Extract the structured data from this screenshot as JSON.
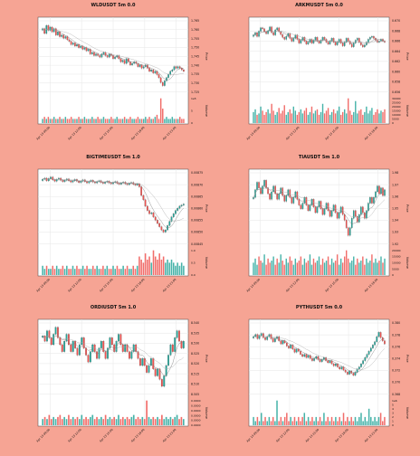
{
  "page": {
    "background": "#f6a494"
  },
  "colors": {
    "up": "#26a69a",
    "down": "#ef5350",
    "ma_fast": "#777777",
    "ma_slow": "#aaaaaa",
    "text": "#111111",
    "grid": "#e6e6e6"
  },
  "chart_data": [
    {
      "type": "candlestick",
      "title": "WLDUSDT 5m 0.0",
      "ylabel": "Price",
      "vlabel": "Volume",
      "y_ticks": [
        "1.765",
        "1.760",
        "1.755",
        "1.750",
        "1.745",
        "1.740",
        "1.735",
        "1.730",
        "1.725"
      ],
      "vol_ticks": [
        "1e5",
        "5",
        "0"
      ],
      "x_labels": [
        "Apr 13 09:00",
        "Apr 13 12:00",
        "Apr 13 15:00",
        "Apr 13 18:00",
        "Apr 13 21:00"
      ],
      "ylim": [
        1.722,
        1.767
      ],
      "close": [
        1.762,
        1.759,
        1.764,
        1.761,
        1.763,
        1.76,
        1.762,
        1.758,
        1.76,
        1.757,
        1.758,
        1.756,
        1.757,
        1.755,
        1.754,
        1.752,
        1.753,
        1.751,
        1.752,
        1.75,
        1.751,
        1.749,
        1.75,
        1.748,
        1.749,
        1.746,
        1.747,
        1.745,
        1.746,
        1.745,
        1.744,
        1.746,
        1.747,
        1.745,
        1.744,
        1.746,
        1.745,
        1.743,
        1.744,
        1.745,
        1.743,
        1.741,
        1.742,
        1.74,
        1.743,
        1.741,
        1.739,
        1.74,
        1.741,
        1.74,
        1.738,
        1.739,
        1.737,
        1.738,
        1.739,
        1.737,
        1.735,
        1.736,
        1.734,
        1.735,
        1.733,
        1.731,
        1.728,
        1.726,
        1.729,
        1.731,
        1.733,
        1.735,
        1.736,
        1.738,
        1.737,
        1.738,
        1.737,
        1.736,
        1.735
      ],
      "volume": [
        2,
        3,
        2,
        3,
        2,
        2,
        3,
        2,
        2,
        3,
        2,
        2,
        3,
        2,
        2,
        3,
        2,
        2,
        2,
        3,
        2,
        2,
        3,
        2,
        2,
        2,
        3,
        2,
        2,
        3,
        2,
        2,
        3,
        2,
        2,
        2,
        3,
        2,
        2,
        3,
        2,
        2,
        2,
        3,
        2,
        2,
        3,
        2,
        2,
        2,
        3,
        2,
        2,
        2,
        3,
        2,
        3,
        2,
        2,
        3,
        4,
        2,
        12,
        7,
        2,
        3,
        2,
        2,
        3,
        2,
        2,
        2,
        3,
        2,
        2
      ]
    },
    {
      "type": "candlestick",
      "title": "ARKMUSDT 5m 0.0",
      "ylabel": "Price",
      "vlabel": "Volume",
      "y_ticks": [
        "0.670",
        "0.668",
        "0.666",
        "0.664",
        "0.662",
        "0.660",
        "0.658",
        "0.656"
      ],
      "vol_ticks": [
        "30000",
        "25000",
        "20000",
        "15000",
        "10000",
        "5000",
        "0"
      ],
      "x_labels": [
        "Apr 13 09:00",
        "Apr 13 12:00",
        "Apr 13 15:00",
        "Apr 13 18:00"
      ],
      "ylim": [
        0.6555,
        0.6705
      ],
      "close": [
        0.6675,
        0.668,
        0.6672,
        0.6683,
        0.669,
        0.6688,
        0.6682,
        0.6678,
        0.6684,
        0.6692,
        0.668,
        0.6675,
        0.6686,
        0.669,
        0.6682,
        0.6676,
        0.667,
        0.6666,
        0.6672,
        0.6678,
        0.6668,
        0.6662,
        0.6668,
        0.6675,
        0.6666,
        0.6658,
        0.6664,
        0.667,
        0.6662,
        0.6656,
        0.666,
        0.6666,
        0.6658,
        0.6664,
        0.667,
        0.6662,
        0.6658,
        0.6664,
        0.667,
        0.6666,
        0.666,
        0.6656,
        0.6662,
        0.6668,
        0.666,
        0.6654,
        0.666,
        0.6666,
        0.6658,
        0.6652,
        0.666,
        0.6668,
        0.6662,
        0.6656,
        0.665,
        0.6658,
        0.6664,
        0.6668,
        0.666,
        0.6654,
        0.665,
        0.6654,
        0.666,
        0.6666,
        0.667,
        0.6672,
        0.6668,
        0.6664,
        0.666,
        0.6662,
        0.6666,
        0.6662,
        0.666
      ],
      "volume": [
        8,
        10,
        6,
        7,
        12,
        9,
        6,
        8,
        10,
        7,
        14,
        9,
        6,
        8,
        11,
        7,
        9,
        13,
        6,
        8,
        10,
        7,
        12,
        9,
        6,
        8,
        10,
        7,
        9,
        11,
        6,
        8,
        12,
        7,
        9,
        10,
        6,
        8,
        14,
        7,
        9,
        11,
        6,
        8,
        10,
        7,
        9,
        12,
        6,
        8,
        10,
        7,
        18,
        9,
        6,
        8,
        16,
        7,
        9,
        10,
        6,
        8,
        12,
        7,
        9,
        11,
        6,
        8,
        10,
        7,
        9,
        8,
        10
      ]
    },
    {
      "type": "candlestick",
      "title": "BIGTIMEUSDT 5m 1.0",
      "ylabel": "Price",
      "vlabel": "Volume",
      "y_ticks": [
        "0.00875",
        "0.00870",
        "0.00865",
        "0.00860",
        "0.00855",
        "0.00850",
        "0.00845"
      ],
      "vol_ticks": [
        "1.0",
        "0.5",
        "0.0"
      ],
      "x_labels": [
        "Apr 13 09:00",
        "Apr 13 12:00",
        "Apr 13 15:00",
        "Apr 13 18:00",
        "Apr 13 21:00"
      ],
      "ylim": [
        0.008435,
        0.008765
      ],
      "close": [
        0.008735,
        0.00874,
        0.008728,
        0.008738,
        0.008745,
        0.008732,
        0.008726,
        0.008734,
        0.00874,
        0.00873,
        0.008724,
        0.00873,
        0.008736,
        0.008728,
        0.008722,
        0.008728,
        0.008734,
        0.008726,
        0.00872,
        0.008726,
        0.008732,
        0.008724,
        0.008718,
        0.008724,
        0.00873,
        0.008722,
        0.008718,
        0.008724,
        0.008728,
        0.00872,
        0.008716,
        0.008722,
        0.008726,
        0.008718,
        0.008714,
        0.00872,
        0.008724,
        0.008716,
        0.008712,
        0.008718,
        0.008722,
        0.008714,
        0.00871,
        0.008716,
        0.00872,
        0.008712,
        0.008708,
        0.008714,
        0.0087,
        0.00866,
        0.00864,
        0.00861,
        0.00859,
        0.008575,
        0.00858,
        0.00856,
        0.008545,
        0.00853,
        0.008515,
        0.0085,
        0.00849,
        0.0085,
        0.00852,
        0.00854,
        0.00856,
        0.008575,
        0.00859,
        0.0086,
        0.00861,
        0.008615,
        0.00862
      ],
      "volume": [
        3,
        2,
        3,
        2,
        2,
        3,
        2,
        3,
        2,
        2,
        3,
        2,
        3,
        2,
        2,
        3,
        2,
        3,
        2,
        2,
        3,
        2,
        3,
        2,
        2,
        3,
        2,
        3,
        2,
        2,
        3,
        2,
        3,
        2,
        2,
        3,
        2,
        3,
        2,
        2,
        3,
        2,
        3,
        2,
        2,
        3,
        2,
        3,
        6,
        5,
        4,
        7,
        5,
        6,
        4,
        8,
        6,
        5,
        7,
        5,
        6,
        4,
        5,
        4,
        5,
        4,
        3,
        4,
        3,
        4,
        3
      ]
    },
    {
      "type": "candlestick",
      "title": "TIAUSDT 5m 1.0",
      "ylabel": "Price",
      "vlabel": "Volume",
      "y_ticks": [
        "1.98",
        "1.97",
        "1.96",
        "1.95",
        "1.94",
        "1.93",
        "1.92"
      ],
      "vol_ticks": [
        "20000",
        "15000",
        "10000",
        "5000",
        "0"
      ],
      "x_labels": [
        "Apr 13 09:00",
        "Apr 13 12:00",
        "Apr 13 15:00",
        "Apr 13 18:00"
      ],
      "ylim": [
        1.913,
        1.988
      ],
      "close": [
        1.962,
        1.97,
        1.978,
        1.972,
        1.966,
        1.974,
        1.98,
        1.972,
        1.966,
        1.96,
        1.968,
        1.974,
        1.966,
        1.96,
        1.966,
        1.972,
        1.964,
        1.958,
        1.964,
        1.97,
        1.962,
        1.956,
        1.962,
        1.968,
        1.96,
        1.954,
        1.95,
        1.956,
        1.962,
        1.954,
        1.948,
        1.954,
        1.96,
        1.952,
        1.946,
        1.952,
        1.958,
        1.95,
        1.944,
        1.95,
        1.956,
        1.948,
        1.942,
        1.948,
        1.954,
        1.946,
        1.94,
        1.946,
        1.952,
        1.944,
        1.938,
        1.93,
        1.922,
        1.93,
        1.94,
        1.948,
        1.942,
        1.936,
        1.944,
        1.952,
        1.946,
        1.94,
        1.948,
        1.956,
        1.962,
        1.956,
        1.962,
        1.968,
        1.974,
        1.966,
        1.972,
        1.964,
        1.97
      ],
      "volume": [
        6,
        8,
        5,
        9,
        7,
        6,
        10,
        5,
        8,
        6,
        7,
        9,
        5,
        8,
        6,
        10,
        7,
        5,
        8,
        6,
        9,
        7,
        5,
        8,
        6,
        7,
        9,
        5,
        8,
        6,
        7,
        10,
        5,
        8,
        6,
        7,
        9,
        5,
        8,
        6,
        7,
        9,
        5,
        8,
        6,
        7,
        10,
        5,
        8,
        6,
        9,
        12,
        8,
        6,
        7,
        9,
        5,
        8,
        6,
        7,
        9,
        5,
        8,
        6,
        7,
        10,
        6,
        8,
        6,
        7,
        9,
        6,
        8
      ]
    },
    {
      "type": "candlestick",
      "title": "ORDIUSDT 5m 1.0",
      "ylabel": "Price",
      "vlabel": "Volume",
      "y_ticks": [
        "8.540",
        "8.535",
        "8.530",
        "8.525",
        "8.520",
        "8.515",
        "8.510",
        "8.505"
      ],
      "vol_ticks": [
        "0.0000",
        "0.0000",
        "0.0000",
        "0.0000",
        "0.0000",
        "0.0000"
      ],
      "x_labels": [
        "Apr 13 09:00",
        "Apr 13 12:00",
        "Apr 13 15:00",
        "Apr 13 18:00",
        "Apr 13 21:00"
      ],
      "ylim": [
        8.5015,
        8.5425
      ],
      "close": [
        8.535,
        8.532,
        8.538,
        8.534,
        8.53,
        8.536,
        8.54,
        8.534,
        8.53,
        8.526,
        8.532,
        8.536,
        8.53,
        8.526,
        8.532,
        8.528,
        8.524,
        8.53,
        8.534,
        8.528,
        8.524,
        8.52,
        8.526,
        8.53,
        8.526,
        8.522,
        8.528,
        8.532,
        8.526,
        8.522,
        8.528,
        8.534,
        8.53,
        8.526,
        8.532,
        8.536,
        8.53,
        8.526,
        8.53,
        8.526,
        8.522,
        8.526,
        8.53,
        8.526,
        8.522,
        8.518,
        8.522,
        8.518,
        8.514,
        8.518,
        8.522,
        8.516,
        8.512,
        8.516,
        8.51,
        8.506,
        8.512,
        8.518,
        8.524,
        8.53,
        8.526,
        8.534,
        8.538,
        8.532,
        8.528,
        8.532
      ],
      "volume": [
        3,
        4,
        3,
        5,
        3,
        4,
        3,
        4,
        5,
        3,
        4,
        3,
        5,
        3,
        4,
        3,
        4,
        3,
        5,
        3,
        4,
        3,
        4,
        5,
        3,
        4,
        3,
        4,
        3,
        5,
        3,
        4,
        3,
        4,
        3,
        5,
        3,
        4,
        3,
        4,
        3,
        4,
        5,
        3,
        4,
        3,
        4,
        3,
        12,
        4,
        3,
        4,
        3,
        4,
        3,
        5,
        3,
        4,
        3,
        4,
        3,
        4,
        5,
        3,
        4,
        3
      ]
    },
    {
      "type": "candlestick",
      "title": "PYTHUSDT 5m 0.0",
      "ylabel": "Price",
      "vlabel": "Volume",
      "y_ticks": [
        "0.380",
        "0.378",
        "0.376",
        "0.374",
        "0.372",
        "0.370",
        "0.368"
      ],
      "vol_ticks": [
        "1e6",
        "5",
        "4",
        "3",
        "2",
        "1",
        "0"
      ],
      "x_labels": [
        "Apr 13 09:00",
        "Apr 13 12:00",
        "Apr 13 15:00",
        "Apr 13 18:00",
        "Apr 13 21:00"
      ],
      "ylim": [
        0.3672,
        0.3808
      ],
      "close": [
        0.3782,
        0.3786,
        0.3778,
        0.3784,
        0.3788,
        0.378,
        0.3776,
        0.3782,
        0.3786,
        0.3778,
        0.3772,
        0.3778,
        0.3782,
        0.3774,
        0.3768,
        0.3774,
        0.377,
        0.3764,
        0.376,
        0.3766,
        0.3758,
        0.3752,
        0.3758,
        0.3754,
        0.3748,
        0.3744,
        0.3748,
        0.3742,
        0.3746,
        0.374,
        0.3736,
        0.374,
        0.3744,
        0.3738,
        0.3734,
        0.3738,
        0.3742,
        0.3736,
        0.3732,
        0.3736,
        0.373,
        0.3726,
        0.373,
        0.3724,
        0.372,
        0.3724,
        0.3718,
        0.3714,
        0.371,
        0.3716,
        0.3712,
        0.3708,
        0.3714,
        0.372,
        0.3724,
        0.373,
        0.3736,
        0.3742,
        0.3748,
        0.3754,
        0.376,
        0.3766,
        0.3772,
        0.3782,
        0.379,
        0.378,
        0.3774,
        0.3768
      ],
      "volume": [
        2,
        1,
        2,
        1,
        3,
        1,
        2,
        1,
        2,
        1,
        2,
        1,
        6,
        1,
        2,
        1,
        2,
        3,
        1,
        2,
        1,
        2,
        1,
        2,
        1,
        2,
        3,
        1,
        2,
        1,
        2,
        1,
        2,
        1,
        2,
        1,
        3,
        1,
        2,
        1,
        2,
        1,
        2,
        1,
        2,
        1,
        3,
        1,
        2,
        1,
        2,
        1,
        2,
        1,
        2,
        3,
        1,
        2,
        1,
        4,
        2,
        1,
        2,
        1,
        2,
        3,
        1,
        2
      ]
    }
  ]
}
